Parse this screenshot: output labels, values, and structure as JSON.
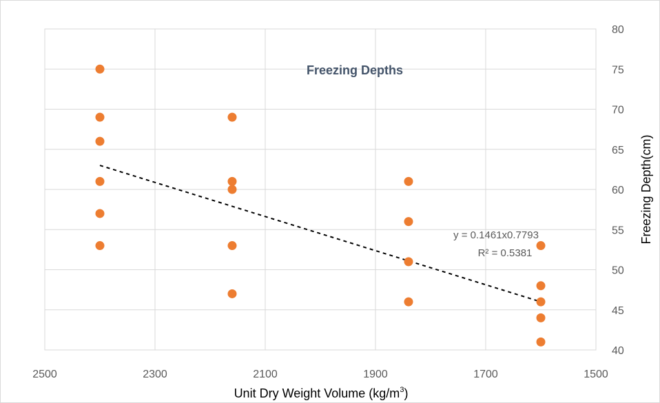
{
  "chart_data": {
    "type": "scatter",
    "title": "Freezing Depths",
    "xlabel_main": "Unit Dry Weight Volume (kg/m",
    "xlabel_sup": "3",
    "xlabel_end": ")",
    "ylabel": "Freezing Depth(cm)",
    "xlim": [
      2500,
      1500
    ],
    "x_reversed": true,
    "ylim": [
      40,
      80
    ],
    "y_axis_position": "right",
    "x_ticks": [
      2500,
      2300,
      2100,
      1900,
      1700,
      1500
    ],
    "y_ticks": [
      40,
      45,
      50,
      55,
      60,
      65,
      70,
      75,
      80
    ],
    "grid": true,
    "series": [
      {
        "color": "#ed7d31",
        "points": [
          {
            "x": 2400,
            "y": 75
          },
          {
            "x": 2400,
            "y": 69
          },
          {
            "x": 2400,
            "y": 66
          },
          {
            "x": 2400,
            "y": 61
          },
          {
            "x": 2400,
            "y": 57
          },
          {
            "x": 2400,
            "y": 53
          },
          {
            "x": 2160,
            "y": 69
          },
          {
            "x": 2160,
            "y": 61
          },
          {
            "x": 2160,
            "y": 60
          },
          {
            "x": 2160,
            "y": 53
          },
          {
            "x": 2160,
            "y": 47
          },
          {
            "x": 1840,
            "y": 61
          },
          {
            "x": 1840,
            "y": 56
          },
          {
            "x": 1840,
            "y": 51
          },
          {
            "x": 1840,
            "y": 46
          },
          {
            "x": 1600,
            "y": 53
          },
          {
            "x": 1600,
            "y": 48
          },
          {
            "x": 1600,
            "y": 46
          },
          {
            "x": 1600,
            "y": 44
          },
          {
            "x": 1600,
            "y": 41
          }
        ]
      }
    ],
    "trendline": {
      "style": "dotted",
      "color": "#000000",
      "from": {
        "x": 2400,
        "y": 63
      },
      "to": {
        "x": 1600,
        "y": 46
      },
      "equation": "y = 0.1461x0.7793",
      "r_squared": "R² = 0.5381"
    }
  }
}
